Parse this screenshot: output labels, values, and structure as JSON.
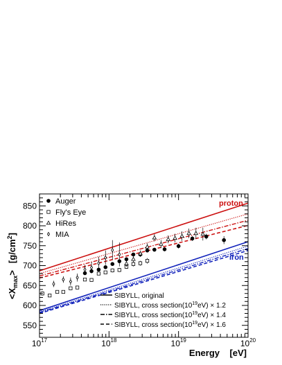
{
  "chart_data": {
    "type": "scatter",
    "xlabel": "Energy    [eV]",
    "ylabel": "<X",
    "ylabel_sub": "max",
    "ylabel_close": ">",
    "ylabel_unit": "[g/cm",
    "ylabel_unit_sup": "2",
    "ylabel_unit_close": "]",
    "x_scale": "log10",
    "xlim": [
      1e+17,
      1e+20
    ],
    "ylim": [
      520,
      880
    ],
    "x_ticks": [
      {
        "base": "10",
        "exp": "17",
        "value": 1e+17
      },
      {
        "base": "10",
        "exp": "18",
        "value": 1e+18
      },
      {
        "base": "10",
        "exp": "19",
        "value": 1e+19
      },
      {
        "base": "10",
        "exp": "20",
        "value": 1e+20
      }
    ],
    "y_ticks": [
      550,
      600,
      650,
      700,
      750,
      800,
      850
    ],
    "grid": false,
    "legend_data": [
      {
        "label": "Auger",
        "marker": "filled-circle"
      },
      {
        "label": "Fly's Eye",
        "marker": "open-square"
      },
      {
        "label": "HiRes",
        "marker": "open-triangle"
      },
      {
        "label": "MIA",
        "marker": "open-diamond"
      }
    ],
    "legend_models": [
      {
        "label": "SIBYLL, original",
        "dash": "solid"
      },
      {
        "label": "SIBYLL, cross section(10",
        "sup": "19",
        "tail": "eV) × 1.2",
        "dash": "dotted"
      },
      {
        "label": "SIBYLL, cross section(10",
        "sup": "19",
        "tail": "eV) × 1.4",
        "dash": "dashdot"
      },
      {
        "label": "SIBYLL, cross section(10",
        "sup": "19",
        "tail": "eV) × 1.6",
        "dash": "dashed"
      }
    ],
    "annotations": {
      "proton": "proton",
      "iron": "iron"
    },
    "colors": {
      "proton": "#cc1111",
      "iron": "#1122bb",
      "data": "#000000"
    },
    "model_lines": [
      {
        "species": "proton",
        "variant": "original",
        "x": [
          1e+17,
          1e+20
        ],
        "y": [
          687,
          857
        ]
      },
      {
        "species": "proton",
        "variant": "x1.2",
        "x": [
          1e+17,
          1e+20
        ],
        "y": [
          680,
          830
        ]
      },
      {
        "species": "proton",
        "variant": "x1.4",
        "x": [
          1e+17,
          1e+20
        ],
        "y": [
          674,
          814
        ]
      },
      {
        "species": "proton",
        "variant": "x1.6",
        "x": [
          1e+17,
          1e+20
        ],
        "y": [
          669,
          801
        ]
      },
      {
        "species": "iron",
        "variant": "original",
        "x": [
          1e+17,
          1e+20
        ],
        "y": [
          587,
          760
        ]
      },
      {
        "species": "iron",
        "variant": "x1.2",
        "x": [
          1e+17,
          1e+20
        ],
        "y": [
          584,
          749
        ]
      },
      {
        "species": "iron",
        "variant": "x1.4",
        "x": [
          1e+17,
          1e+20
        ],
        "y": [
          582,
          743
        ]
      },
      {
        "species": "iron",
        "variant": "x1.6",
        "x": [
          1e+17,
          1e+20
        ],
        "y": [
          580,
          738
        ]
      }
    ],
    "series": [
      {
        "name": "Auger",
        "marker": "filled-circle",
        "x": [
          4.5e+17,
          5.6e+17,
          7.1e+17,
          8.9e+17,
          1.12e+18,
          1.41e+18,
          1.78e+18,
          2.24e+18,
          2.82e+18,
          3.55e+18,
          4.5e+18,
          6.3e+18,
          1e+19,
          1.58e+19,
          2.51e+19,
          4.5e+19
        ],
        "y": [
          681,
          686,
          690,
          696,
          704,
          711,
          716,
          728,
          728,
          738,
          740,
          741,
          749,
          768,
          773,
          764
        ],
        "err": [
          4,
          4,
          3,
          3,
          4,
          4,
          4,
          4,
          5,
          5,
          5,
          5,
          6,
          6,
          7,
          10
        ]
      },
      {
        "name": "Fly's Eye",
        "marker": "open-square",
        "x": [
          1.1e+17,
          1.4e+17,
          1.8e+17,
          2.2e+17,
          2.8e+17,
          3.5e+17,
          4.5e+17,
          5.6e+17,
          7.1e+17,
          8.9e+17,
          1.12e+18,
          1.41e+18,
          1.78e+18,
          2.24e+18,
          2.82e+18,
          3.55e+18
        ],
        "y": [
          630,
          625,
          634,
          634,
          643,
          645,
          665,
          664,
          680,
          683,
          688,
          689,
          697,
          704,
          706,
          712
        ],
        "err": [
          5,
          4,
          4,
          4,
          4,
          4,
          4,
          4,
          4,
          4,
          5,
          5,
          5,
          6,
          6,
          7
        ]
      },
      {
        "name": "HiRes",
        "marker": "open-triangle",
        "x": [
          1.78e+18,
          2.24e+18,
          2.82e+18,
          3.55e+18,
          4.5e+18,
          5.6e+18,
          7.1e+18,
          8.9e+18,
          1.12e+19,
          1.41e+19,
          1.78e+19,
          2.24e+19
        ],
        "y": [
          705,
          716,
          730,
          747,
          770,
          754,
          766,
          769,
          774,
          781,
          781,
          779
        ],
        "err": [
          8,
          8,
          8,
          9,
          9,
          10,
          10,
          11,
          12,
          12,
          14,
          16
        ]
      },
      {
        "name": "MIA",
        "marker": "open-diamond",
        "x": [
          1.6e+17,
          2.2e+17,
          2.8e+17,
          3.5e+17,
          4.5e+17,
          5.6e+17,
          7.1e+17,
          8.9e+17,
          1.12e+18,
          1.41e+18
        ],
        "y": [
          654,
          665,
          660,
          670,
          690,
          695,
          706,
          720,
          739,
          728
        ],
        "err": [
          8,
          8,
          10,
          10,
          12,
          14,
          16,
          18,
          25,
          30
        ]
      }
    ]
  }
}
